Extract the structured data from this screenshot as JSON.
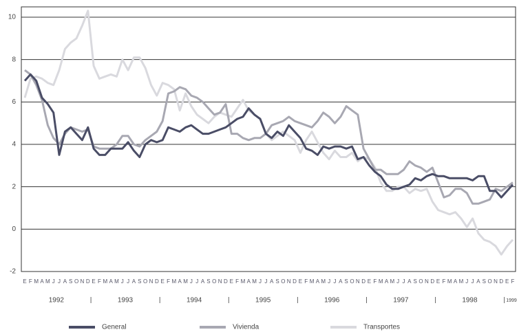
{
  "chart_data": {
    "type": "line",
    "categories": [
      "E",
      "F",
      "M",
      "A",
      "M",
      "J",
      "J",
      "A",
      "S",
      "O",
      "N",
      "D",
      "E",
      "F",
      "M",
      "A",
      "M",
      "J",
      "J",
      "A",
      "S",
      "O",
      "N",
      "D",
      "E",
      "F",
      "M",
      "A",
      "M",
      "J",
      "J",
      "A",
      "S",
      "O",
      "N",
      "D",
      "E",
      "F",
      "M",
      "A",
      "M",
      "J",
      "J",
      "A",
      "S",
      "O",
      "N",
      "D",
      "E",
      "F",
      "M",
      "A",
      "M",
      "J",
      "J",
      "A",
      "S",
      "O",
      "N",
      "D",
      "E",
      "F",
      "M",
      "A",
      "M",
      "J",
      "J",
      "A",
      "S",
      "O",
      "N",
      "D",
      "E",
      "F",
      "M",
      "A",
      "M",
      "J",
      "J",
      "A",
      "S",
      "O",
      "N",
      "D",
      "E",
      "F"
    ],
    "years": [
      "1992",
      "1993",
      "1994",
      "1995",
      "1996",
      "1997",
      "1998",
      "1999"
    ],
    "ylim": [
      -2,
      10
    ],
    "yticks": [
      -2,
      0,
      2,
      4,
      6,
      8,
      10
    ],
    "grid": true,
    "series": [
      {
        "name": "General",
        "color": "#4a4d66",
        "values": [
          7.0,
          7.3,
          7.0,
          6.2,
          5.9,
          5.5,
          3.5,
          4.6,
          4.8,
          4.5,
          4.2,
          4.8,
          3.8,
          3.5,
          3.5,
          3.8,
          3.8,
          3.8,
          4.1,
          3.7,
          3.4,
          4.0,
          4.2,
          4.1,
          4.2,
          4.8,
          4.7,
          4.6,
          4.8,
          4.9,
          4.7,
          4.5,
          4.5,
          4.6,
          4.7,
          4.8,
          5.0,
          5.2,
          5.3,
          5.7,
          5.4,
          5.2,
          4.5,
          4.3,
          4.6,
          4.4,
          4.9,
          4.6,
          4.3,
          3.8,
          3.7,
          3.5,
          3.9,
          3.8,
          3.9,
          3.9,
          3.8,
          3.9,
          3.3,
          3.4,
          3.0,
          2.7,
          2.5,
          2.1,
          1.9,
          1.9,
          2.0,
          2.1,
          2.4,
          2.3,
          2.5,
          2.6,
          2.5,
          2.5,
          2.4,
          2.4,
          2.4,
          2.4,
          2.3,
          2.5,
          2.5,
          1.8,
          1.8,
          1.5,
          1.8,
          2.1
        ]
      },
      {
        "name": "Vivienda",
        "color": "#a8a8b2",
        "values": [
          7.5,
          7.3,
          6.8,
          6.1,
          4.9,
          4.3,
          4.0,
          4.5,
          4.8,
          4.7,
          4.6,
          4.7,
          3.9,
          3.8,
          3.8,
          3.8,
          4.0,
          4.4,
          4.4,
          4.0,
          3.9,
          4.2,
          4.4,
          4.6,
          5.1,
          6.4,
          6.5,
          6.7,
          6.6,
          6.3,
          6.2,
          6.0,
          5.7,
          5.4,
          5.5,
          5.9,
          4.5,
          4.5,
          4.3,
          4.2,
          4.3,
          4.3,
          4.5,
          4.9,
          5.0,
          5.1,
          5.3,
          5.1,
          5.0,
          4.9,
          4.8,
          5.1,
          5.5,
          5.3,
          5.0,
          5.3,
          5.8,
          5.6,
          5.4,
          3.8,
          3.3,
          2.8,
          2.8,
          2.6,
          2.6,
          2.6,
          2.8,
          3.2,
          3.0,
          2.9,
          2.7,
          2.9,
          2.2,
          1.5,
          1.6,
          1.9,
          1.9,
          1.7,
          1.2,
          1.2,
          1.3,
          1.4,
          1.9,
          1.8,
          2.0,
          2.2
        ]
      },
      {
        "name": "Transportes",
        "color": "#d9d9de",
        "values": [
          6.2,
          7.1,
          7.2,
          7.1,
          6.9,
          6.8,
          7.5,
          8.5,
          8.8,
          9.0,
          9.6,
          10.3,
          7.7,
          7.1,
          7.2,
          7.3,
          7.2,
          8.0,
          7.5,
          8.1,
          8.1,
          7.6,
          6.8,
          6.3,
          6.9,
          6.8,
          6.6,
          5.6,
          6.4,
          5.8,
          5.4,
          5.2,
          5.0,
          5.3,
          5.5,
          5.4,
          5.3,
          5.7,
          6.1,
          5.6,
          5.4,
          5.2,
          4.5,
          4.2,
          4.4,
          4.6,
          4.4,
          4.2,
          3.6,
          4.2,
          4.6,
          4.1,
          3.6,
          3.3,
          3.7,
          3.4,
          3.4,
          3.6,
          3.2,
          3.4,
          3.3,
          2.9,
          2.2,
          1.8,
          1.8,
          2.0,
          2.0,
          1.7,
          1.9,
          1.8,
          1.9,
          1.3,
          0.9,
          0.8,
          0.7,
          0.8,
          0.5,
          0.1,
          0.5,
          -0.2,
          -0.5,
          -0.6,
          -0.8,
          -1.2,
          -0.8,
          -0.5
        ]
      }
    ]
  }
}
